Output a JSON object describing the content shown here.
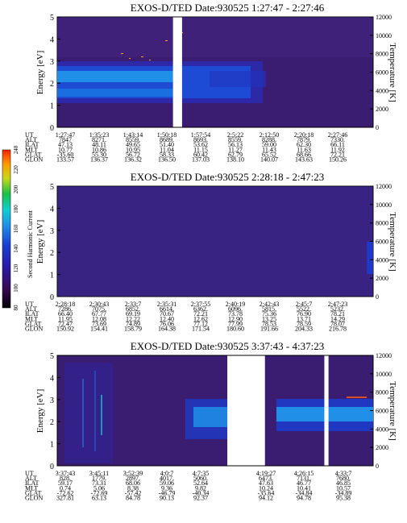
{
  "chart_data": [
    {
      "type": "heatmap",
      "title": "EXOS-D/TED   Date:930525   1:27:47 - 2:27:46",
      "ylabel": "Energy [eV]",
      "ylabel_right": "Temperature [K]",
      "ylim": [
        0,
        5
      ],
      "y_ticks": [
        "0",
        "1",
        "2",
        "3",
        "4",
        "5"
      ],
      "right_ylim": [
        0,
        12000
      ],
      "right_ticks": [
        "0",
        "2000",
        "4000",
        "6000",
        "8000",
        "10000",
        "12000"
      ],
      "data_gaps_ut": [
        "1:51:30",
        "1:53:30"
      ],
      "table": {
        "row_labels": [
          "UT",
          "ALT",
          "ILAT",
          "MLT",
          "GLAT",
          "GLON"
        ],
        "columns": [
          [
            "1:27:47",
            "7847",
            "47.13",
            "10.77",
            "-35.60",
            "133.57"
          ],
          [
            "1:35:23",
            "8271.",
            "48.11",
            "10.86",
            "55.30",
            "136.37"
          ],
          [
            "1:43:14",
            "8559.",
            "49.65",
            "10.95",
            "56.72",
            "136.32"
          ],
          [
            "1:50:18",
            "8689.",
            "51.40",
            "11.04",
            "58.33",
            "136.50"
          ],
          [
            "1:57:54",
            "8693.",
            "53.62",
            "11.15",
            "60.42",
            "137.03"
          ],
          [
            "2:5:22",
            "8559.",
            "56.13",
            "11.27",
            "62.79",
            "138.10"
          ],
          [
            "2:12:50",
            "8288.",
            "59.00",
            "11.43",
            "65.52",
            "140.07"
          ],
          [
            "2:20:18",
            "7879.",
            "62.30",
            "11.63",
            "68.66",
            "143.63"
          ],
          [
            "2:27:46",
            "7330.",
            "66.11",
            "11.92",
            "72.21",
            "150.26"
          ]
        ]
      }
    },
    {
      "type": "heatmap",
      "title": "EXOS-D/TED   Date:930525   2:28:18 - 2:47:23",
      "ylabel": "Energy [eV]",
      "ylabel_extra": "Second Harmonic Current",
      "ylabel_right": "Temperature [K]",
      "ylim": [
        0,
        5
      ],
      "y_ticks": [
        "0",
        "1",
        "2",
        "3",
        "4",
        "5"
      ],
      "right_ylim": [
        0,
        12000
      ],
      "right_ticks": [
        "0",
        "2000",
        "4000",
        "6000",
        "8000",
        "10000",
        "12000"
      ],
      "colorbar": {
        "ticks": [
          "80",
          "100",
          "120",
          "140",
          "160",
          "180",
          "200",
          "220",
          "240"
        ],
        "colors": [
          "#000000",
          "#3a0a55",
          "#2a1aa8",
          "#1a3fd6",
          "#1f8fe8",
          "#10d0d0",
          "#18c048",
          "#c8d818",
          "#ff9a00",
          "#ff2000"
        ]
      },
      "table": {
        "row_labels": [
          "UT",
          "ALT",
          "ILAT",
          "MLT",
          "GLAT",
          "GLON"
        ],
        "columns": [
          [
            "2:28:18",
            "7286.",
            "66.40",
            "11.95",
            "72.47",
            "150.92"
          ],
          [
            "2:30:43",
            "7075.",
            "67.77",
            "12.08",
            "73.69",
            "154.41"
          ],
          [
            "2:33:7",
            "6852.",
            "69.19",
            "12.22",
            "74.89",
            "158.79"
          ],
          [
            "2:35:31",
            "6614.",
            "70.67",
            "12.40",
            "76.06",
            "164.38"
          ],
          [
            "2:37:55",
            "6362.",
            "72.21",
            "12.62",
            "77.12",
            "171.54"
          ],
          [
            "2:40:19",
            "6096.",
            "73.78",
            "12.90",
            "77.99",
            "180.60"
          ],
          [
            "2:42:43",
            "5815.",
            "75.36",
            "13.25",
            "78.53",
            "191.66"
          ],
          [
            "2:45:7",
            "5522.",
            "76.90",
            "13.71",
            "78.59",
            "204.33"
          ],
          [
            "2:47:23",
            "5232.",
            "78.21",
            "14.29",
            "78.07",
            "216.78"
          ]
        ]
      }
    },
    {
      "type": "heatmap",
      "title": "EXOS-D/TED   Date:930525   3:37:43 - 4:37:23",
      "ylabel": "Energy [eV]",
      "ylabel_right": "Temperature [K]",
      "ylim": [
        0,
        5
      ],
      "y_ticks": [
        "0",
        "1",
        "2",
        "3",
        "4",
        "5"
      ],
      "right_ylim": [
        0,
        12000
      ],
      "right_ticks": [
        "0",
        "2000",
        "4000",
        "6000",
        "8000",
        "10000",
        "12000"
      ],
      "data_gaps_ut": [
        "4:10:00",
        "4:17:30",
        "4:29:20",
        "4:30:10"
      ],
      "table": {
        "row_labels": [
          "UT",
          "ALT",
          "ILAT",
          "MLT",
          "GLAT",
          "GLON"
        ],
        "columns": [
          [
            "3:37:43",
            "828.",
            "59.17",
            "0.74",
            "-72.62",
            "327.81"
          ],
          [
            "3:45:11",
            "1779.",
            "73.31",
            "5.06",
            "-72.69",
            "63.13"
          ],
          [
            "3:52:39",
            "2897.",
            "68.06",
            "8.38",
            "-57.42",
            "84.78"
          ],
          [
            "4:0:7",
            "4017.",
            "59.06",
            "9.36",
            "-46.79",
            "90.13"
          ],
          [
            "4:7:35",
            "5060.",
            "52.64",
            "9.82",
            "-40.34",
            "92.37"
          ],
          [
            "4:19:27",
            "6473.",
            "47.63",
            "10.24",
            "-35.64",
            "94.12"
          ],
          [
            "4:26:15",
            "7131.",
            "46.77",
            "10.41",
            "-34.84",
            "94.78"
          ],
          [
            "4:33:7",
            "7680.",
            "46.85",
            "10.57",
            "-34.89",
            "95.38"
          ]
        ]
      }
    }
  ]
}
